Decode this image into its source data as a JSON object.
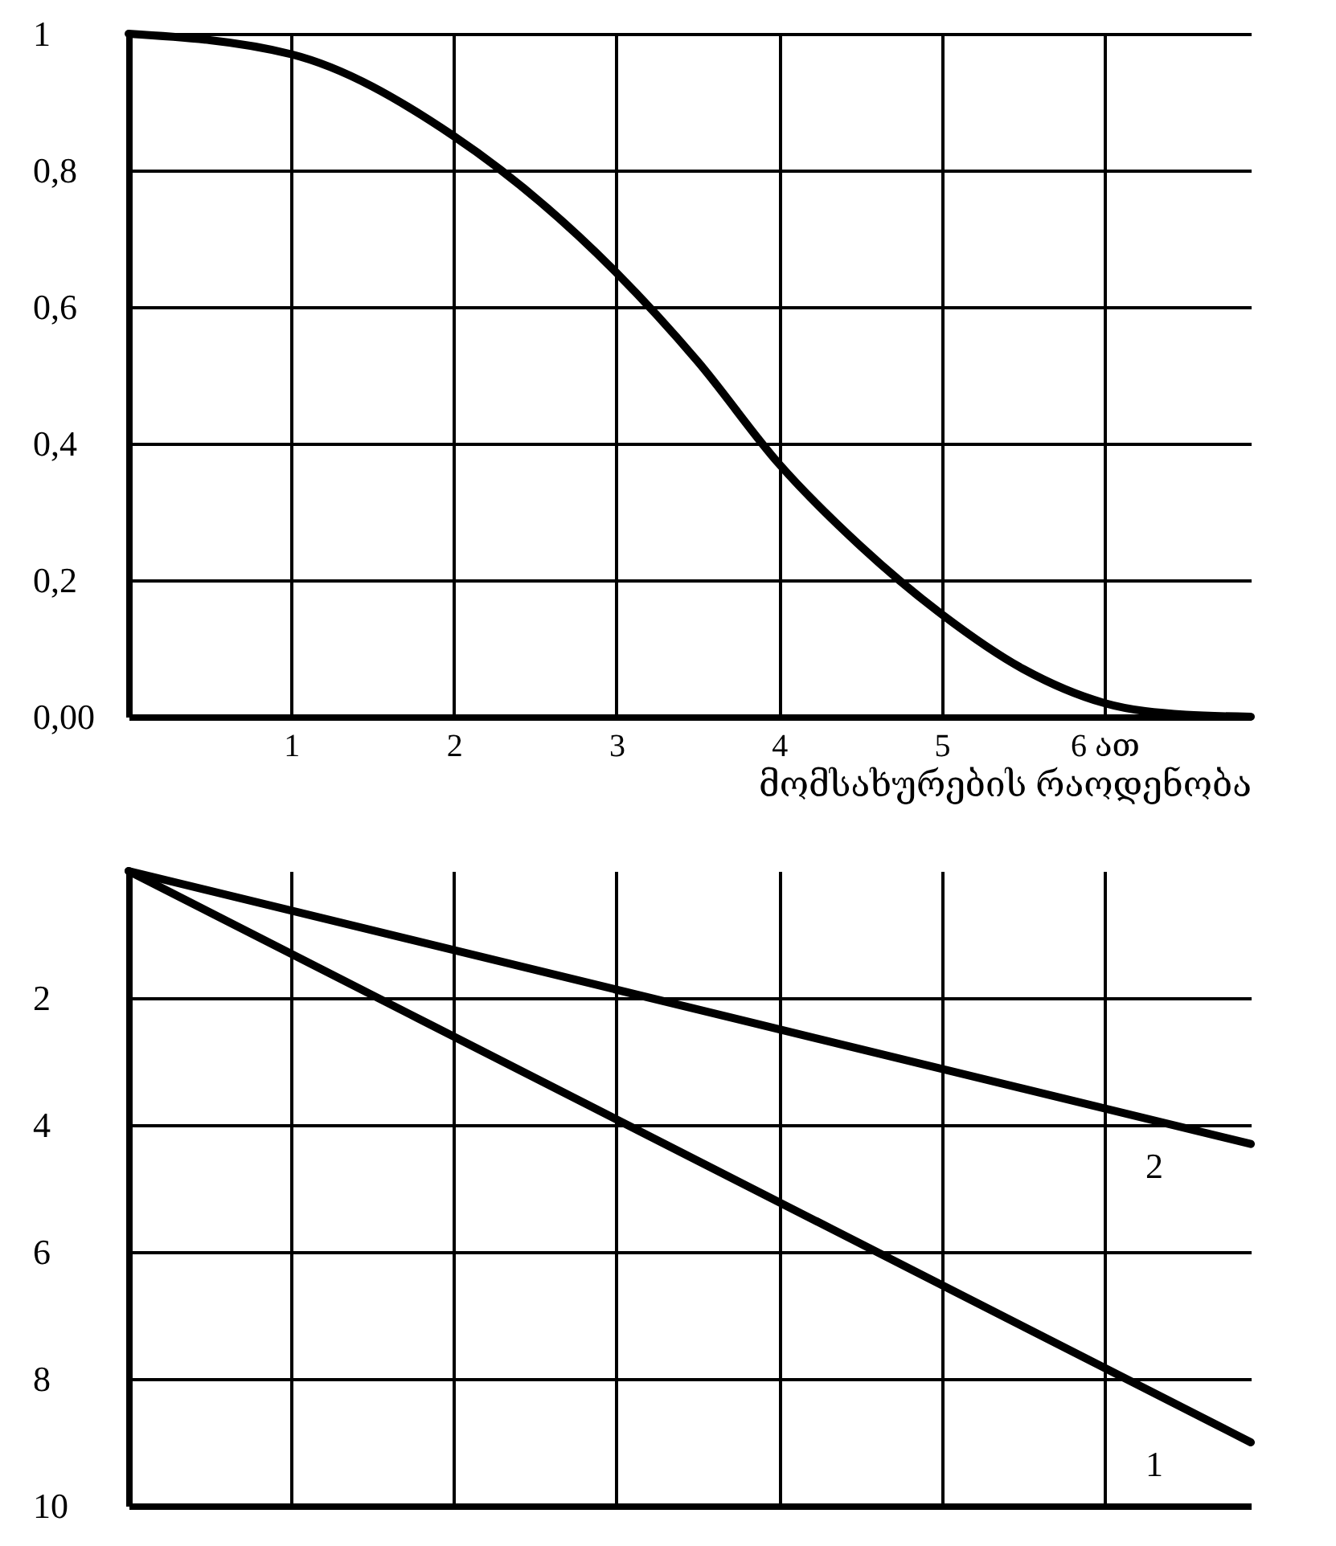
{
  "chart_data": [
    {
      "type": "line",
      "x": [
        0,
        1,
        2,
        3,
        3.5,
        4,
        4.5,
        5,
        5.5,
        6,
        6.5,
        6.9
      ],
      "values": [
        1,
        0.97,
        0.85,
        0.65,
        0.52,
        0.37,
        0.25,
        0.15,
        0.07,
        0.02,
        0.003,
        0
      ],
      "color": "#000000",
      "xlim": [
        0,
        6.9
      ],
      "xticks": [
        1,
        2,
        3,
        4,
        5,
        {
          "value": 6,
          "label": "6 ათ"
        }
      ],
      "xlabel": "მომსახურების რაოდენობა",
      "ylim": [
        0,
        1
      ],
      "yticks": [
        {
          "value": 0,
          "label": "0,00"
        },
        {
          "value": 0.2,
          "label": "0,2"
        },
        {
          "value": 0.4,
          "label": "0,4"
        },
        {
          "value": 0.6,
          "label": "0,6"
        },
        {
          "value": 0.8,
          "label": "0,8"
        },
        1
      ],
      "grid": true
    },
    {
      "type": "line",
      "x": [
        0,
        6.9
      ],
      "series": [
        {
          "name": "1",
          "color": "#000000",
          "values": [
            0,
            9
          ]
        },
        {
          "name": "2",
          "color": "#000000",
          "values": [
            0,
            4.3
          ]
        }
      ],
      "xlim": [
        0,
        6.9
      ],
      "xticks": [
        1,
        2,
        3,
        4,
        5,
        6
      ],
      "ylim": [
        10,
        0
      ],
      "yticks": [
        2,
        4,
        6,
        8,
        10
      ],
      "grid": true,
      "tick_labels": "y"
    }
  ]
}
